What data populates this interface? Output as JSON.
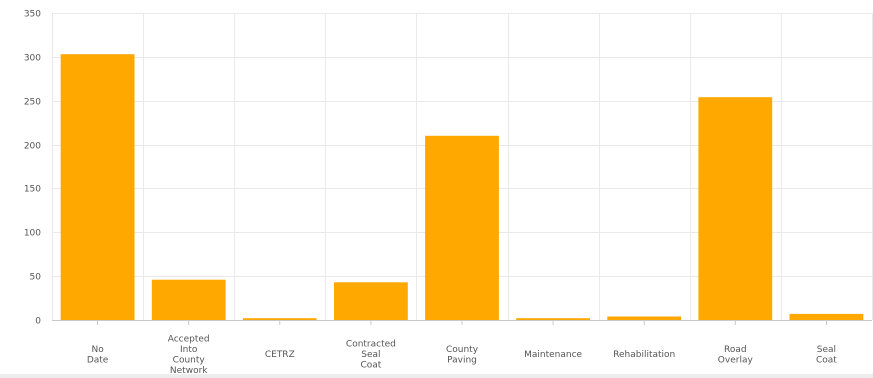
{
  "chart_data": {
    "type": "bar",
    "title": "",
    "xlabel": "",
    "ylabel": "",
    "ylim": [
      0,
      350
    ],
    "yticks": [
      0,
      50,
      100,
      150,
      200,
      250,
      300,
      350
    ],
    "grid": true,
    "categories": [
      [
        "No",
        "Date"
      ],
      [
        "Accepted",
        "Into",
        "County",
        "Network"
      ],
      [
        "CETRZ"
      ],
      [
        "Contracted",
        "Seal",
        "Coat"
      ],
      [
        "County",
        "Paving"
      ],
      [
        "Maintenance"
      ],
      [
        "Rehabilitation"
      ],
      [
        "Road",
        "Overlay"
      ],
      [
        "Seal",
        "Coat"
      ]
    ],
    "values": [
      303,
      46,
      2,
      43,
      210,
      2,
      4,
      254,
      7
    ],
    "colors": {
      "bar": "#ffa800",
      "grid": "#e9e9e9",
      "text": "#555555"
    }
  }
}
